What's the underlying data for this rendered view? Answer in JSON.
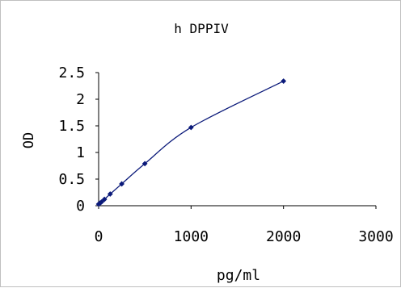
{
  "chart_data": {
    "type": "line",
    "title": "h DPPIV",
    "xlabel": "pg/ml",
    "ylabel": "OD",
    "xlim": [
      0,
      3000
    ],
    "ylim": [
      0,
      2.5
    ],
    "x_ticks": [
      0,
      1000,
      2000,
      3000
    ],
    "x_tick_labels": [
      "0",
      "1000",
      "2000",
      "3000"
    ],
    "y_ticks": [
      0,
      0.5,
      1,
      1.5,
      2,
      2.5
    ],
    "y_tick_labels": [
      "0",
      "0.5",
      "1",
      "1.5",
      "2",
      "2.5"
    ],
    "grid": false,
    "legend": "none",
    "series": [
      {
        "color": "#0b1a7a",
        "marker": "diamond",
        "x": [
          0,
          15.6,
          31.25,
          62.5,
          125,
          250,
          500,
          1000,
          2000
        ],
        "y": [
          0.03,
          0.05,
          0.07,
          0.12,
          0.22,
          0.41,
          0.79,
          1.47,
          2.34
        ]
      }
    ]
  }
}
